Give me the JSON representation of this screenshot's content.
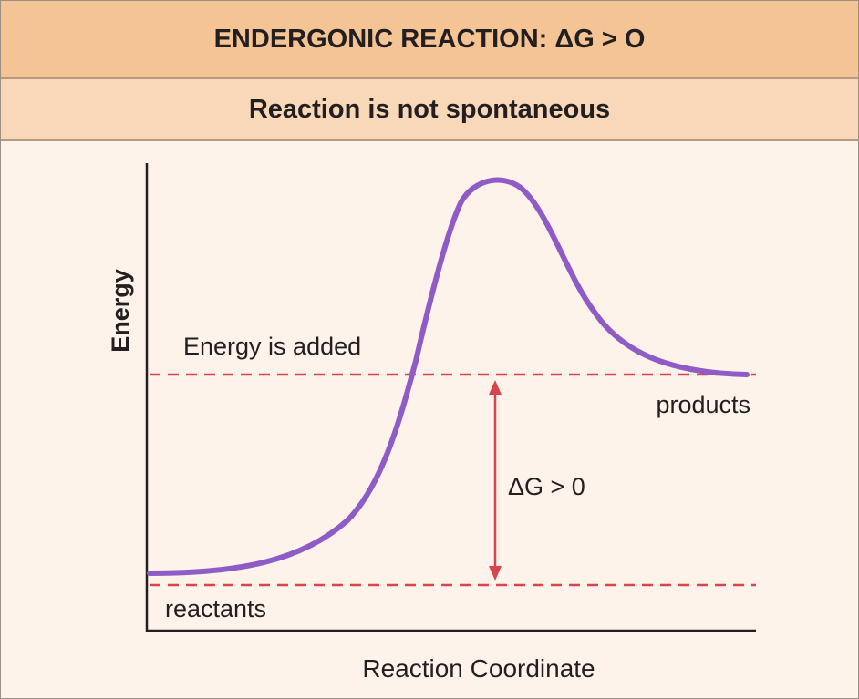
{
  "header": {
    "title": "ENDERGONIC REACTION: ΔG > O",
    "subtitle": "Reaction is not spontaneous"
  },
  "axes": {
    "ylabel": "Energy",
    "xlabel": "Reaction Coordinate"
  },
  "labels": {
    "energy_added": "Energy is added",
    "products": "products",
    "reactants": "reactants",
    "delta_g": "ΔG > 0"
  },
  "colors": {
    "header_bg": "#f4c495",
    "subheader_bg": "#f8d8b8",
    "panel_bg": "#fdf3ea",
    "curve": "#8f5bc6",
    "dashed_lines": "#d9454d",
    "arrow": "#d9454d"
  }
}
